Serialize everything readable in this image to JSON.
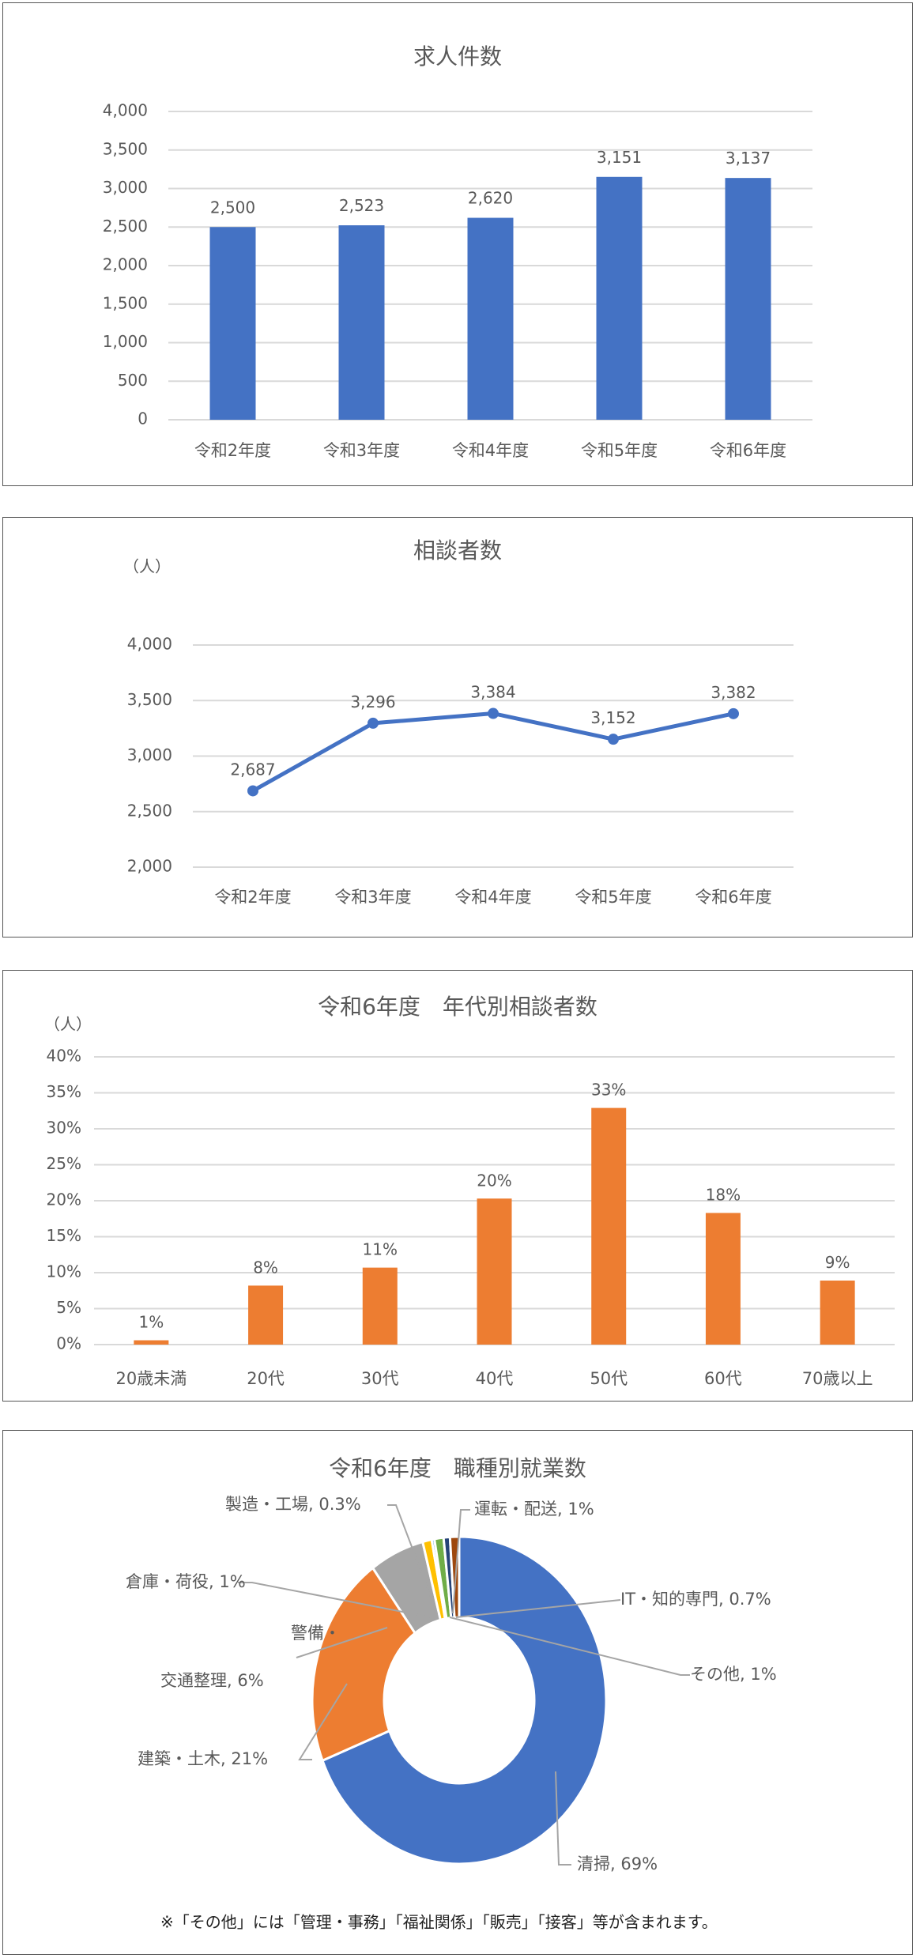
{
  "chart_data": [
    {
      "type": "bar",
      "title": "求人件数",
      "categories": [
        "令和2年度",
        "令和3年度",
        "令和4年度",
        "令和5年度",
        "令和6年度"
      ],
      "values": [
        2500,
        2523,
        2620,
        3151,
        3137
      ],
      "data_labels": [
        "2,500",
        "2,523",
        "2,620",
        "3,151",
        "3,137"
      ],
      "ylim": [
        0,
        4000
      ],
      "yticks": [
        "0",
        "500",
        "1,000",
        "1,500",
        "2,000",
        "2,500",
        "3,000",
        "3,500",
        "4,000"
      ],
      "grid": true,
      "color": "#4472C4"
    },
    {
      "type": "line",
      "title": "相談者数",
      "yunit": "（人）",
      "categories": [
        "令和2年度",
        "令和3年度",
        "令和4年度",
        "令和5年度",
        "令和6年度"
      ],
      "values": [
        2687,
        3296,
        3384,
        3152,
        3382
      ],
      "data_labels": [
        "2,687",
        "3,296",
        "3,384",
        "3,152",
        "3,382"
      ],
      "ylim": [
        2000,
        4000
      ],
      "yticks": [
        "2,000",
        "2,500",
        "3,000",
        "3,500",
        "4,000"
      ],
      "grid": true,
      "color": "#4472C4"
    },
    {
      "type": "bar",
      "title": "令和6年度　年代別相談者数",
      "yunit": "（人）",
      "categories": [
        "20歳未満",
        "20代",
        "30代",
        "40代",
        "50代",
        "60代",
        "70歳以上"
      ],
      "values": [
        0.6,
        8.2,
        10.7,
        20.3,
        32.9,
        18.3,
        8.9
      ],
      "data_labels": [
        "1%",
        "8%",
        "11%",
        "20%",
        "33%",
        "18%",
        "9%"
      ],
      "ylim": [
        0,
        40
      ],
      "yticks": [
        "0%",
        "5%",
        "10%",
        "15%",
        "20%",
        "25%",
        "30%",
        "35%",
        "40%"
      ],
      "grid": true,
      "color": "#ED7D31"
    },
    {
      "type": "pie",
      "title": "令和6年度　職種別就業数",
      "donut": true,
      "slices": [
        {
          "label": "清掃, 69%",
          "value": 69,
          "color": "#4472C4"
        },
        {
          "label": "建築・土木, 21%",
          "value": 21,
          "color": "#ED7D31"
        },
        {
          "label": "警備・|交通整理, 6%",
          "value": 6,
          "color": "#A5A5A5"
        },
        {
          "label": "倉庫・荷役, 1%",
          "value": 1,
          "color": "#FFC000"
        },
        {
          "label": "製造・工場, 0.3%",
          "value": 0.3,
          "color": "#5B9BD5"
        },
        {
          "label": "その他, 1%",
          "value": 1,
          "color": "#70AD47"
        },
        {
          "label": "IT・知的専門, 0.7%",
          "value": 0.7,
          "color": "#264478"
        },
        {
          "label": "運転・配送, 1%",
          "value": 1,
          "color": "#9E480E"
        }
      ],
      "footnote": "※「その他」には「管理・事務」「福祉関係」「販売」「接客」等が含まれます。"
    }
  ]
}
